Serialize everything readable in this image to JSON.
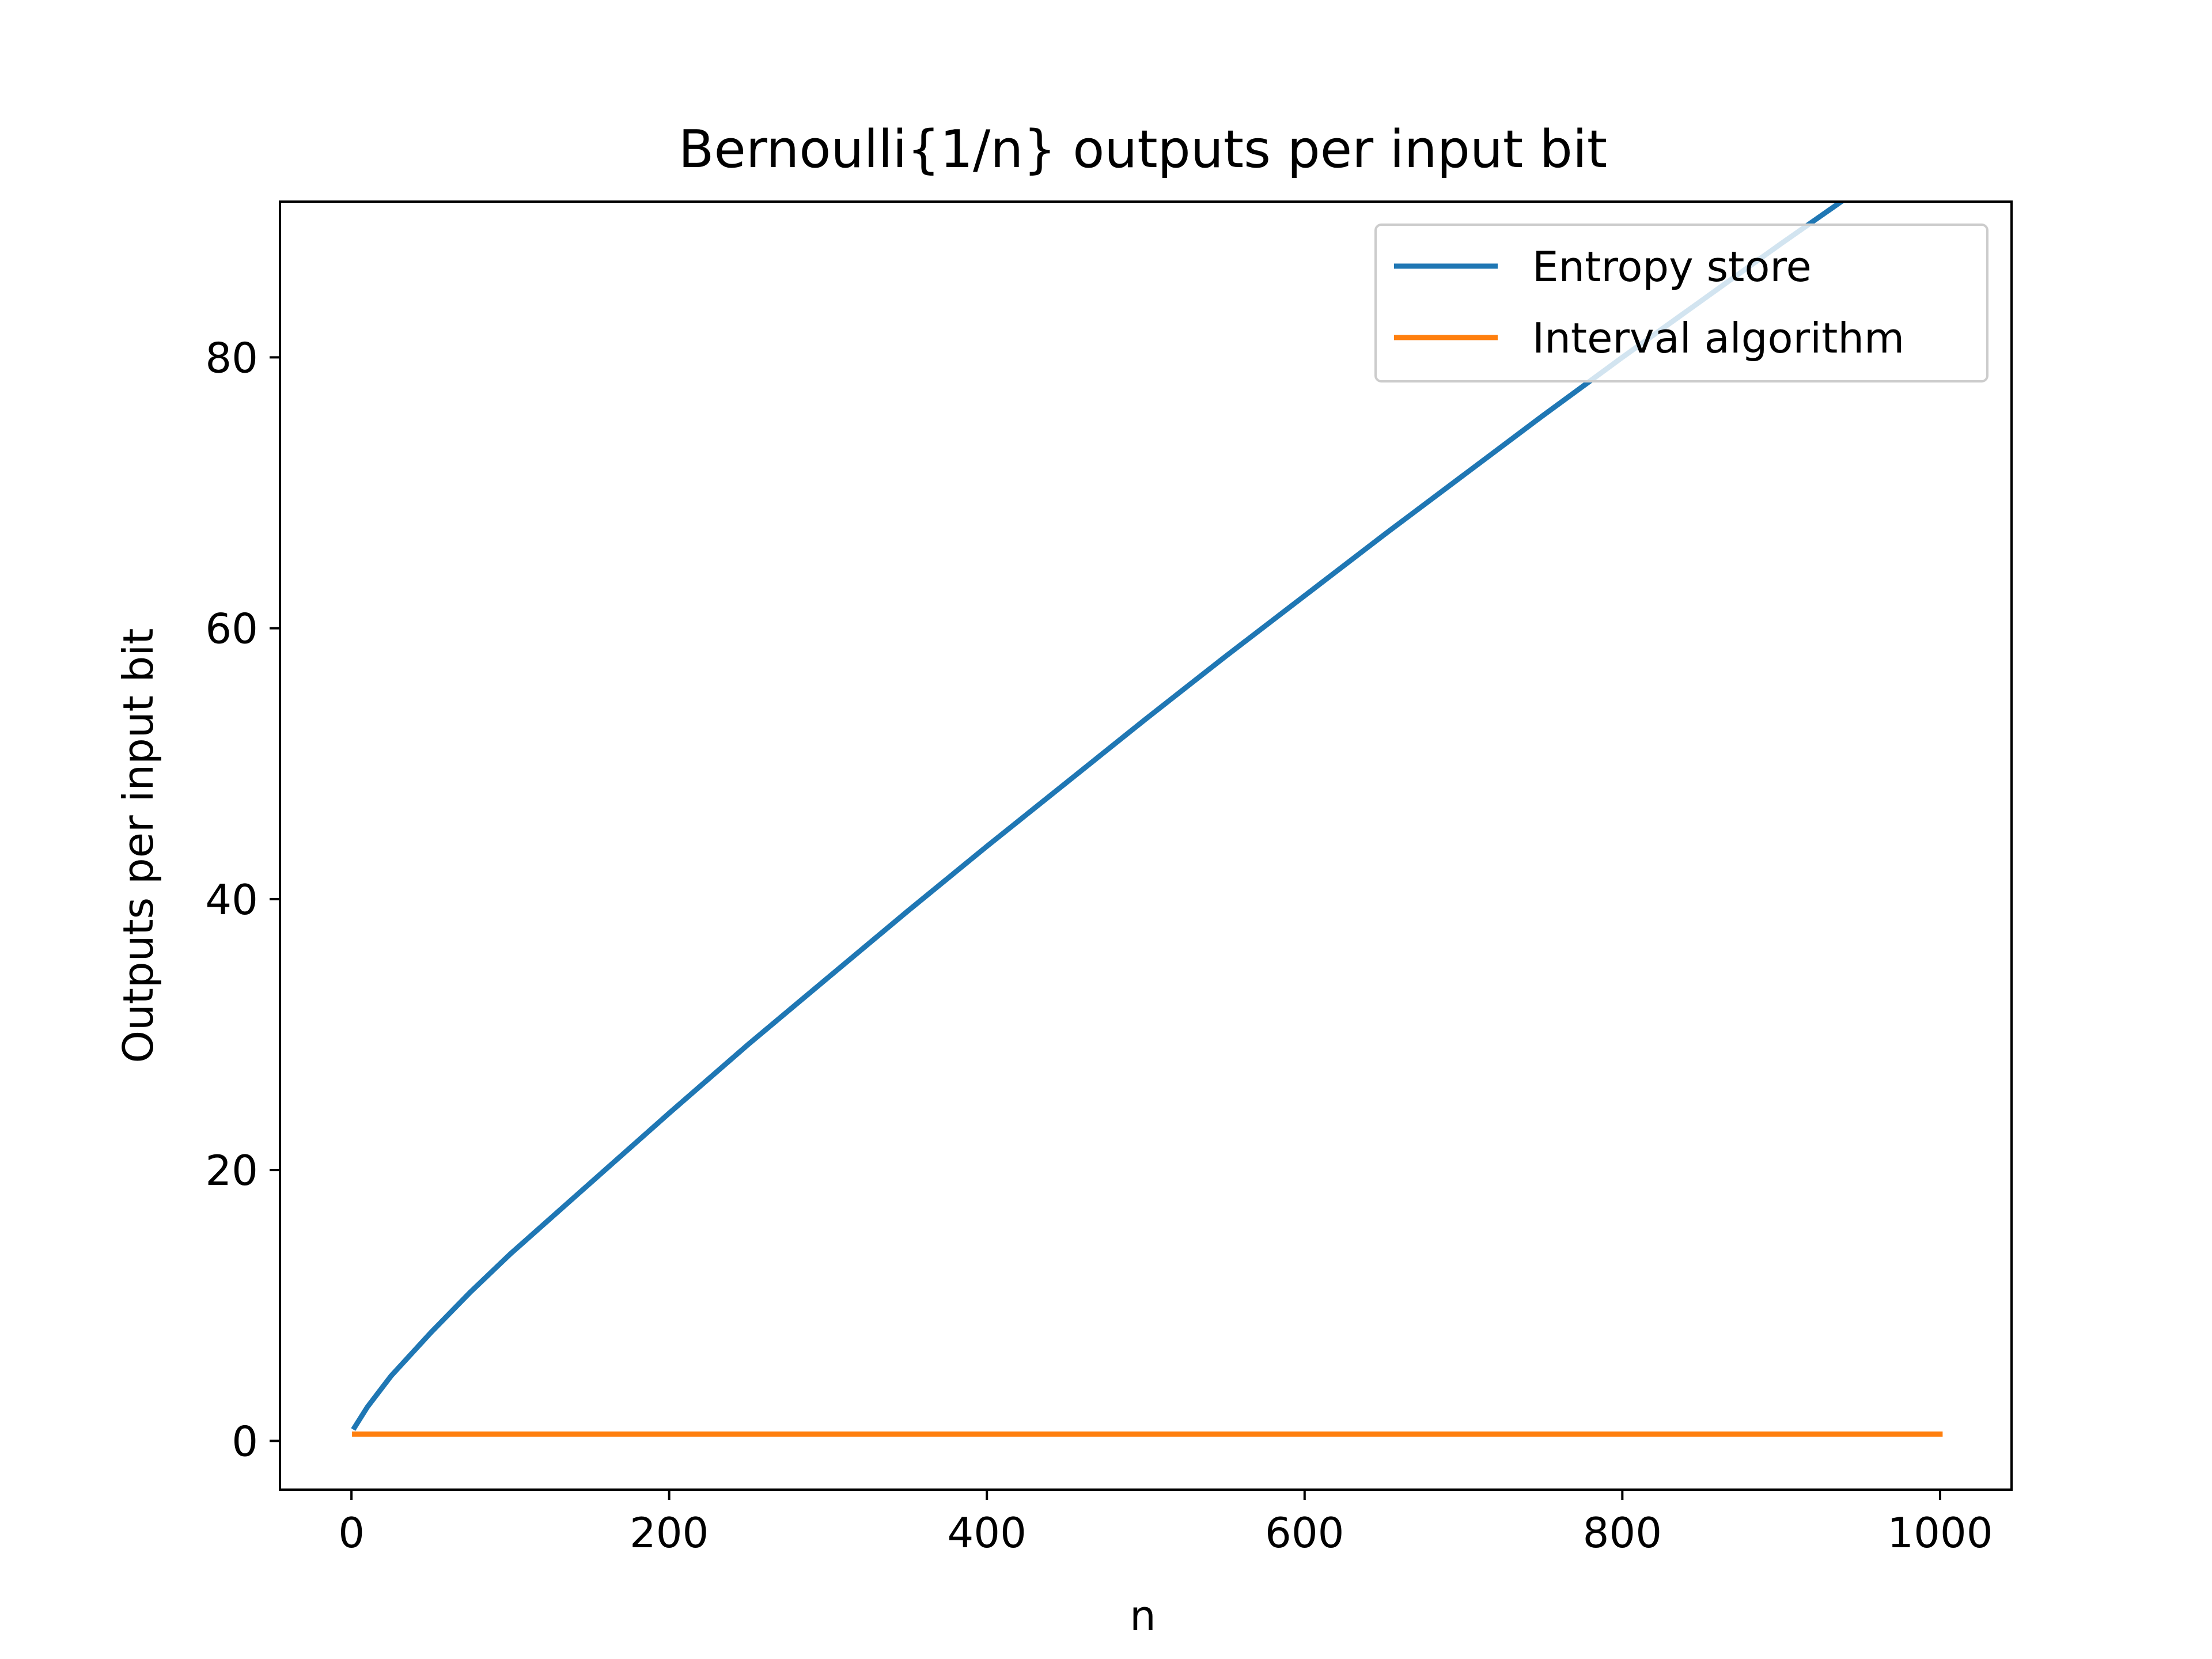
{
  "chart_data": {
    "type": "line",
    "title": "Bernoulli{1/n} outputs per input bit",
    "xlabel": "n",
    "ylabel": "Outputs per input bit",
    "xlim": [
      -45,
      1045
    ],
    "ylim": [
      -3.6,
      91.5
    ],
    "xticks": [
      0,
      200,
      400,
      600,
      800,
      1000
    ],
    "yticks": [
      0,
      20,
      40,
      60,
      80
    ],
    "xtick_labels": [
      "0",
      "200",
      "400",
      "600",
      "800",
      "1000"
    ],
    "ytick_labels": [
      "0",
      "20",
      "40",
      "60",
      "80"
    ],
    "grid": false,
    "legend_position": "top-right",
    "series": [
      {
        "name": "Entropy store",
        "color": "#1f77b4",
        "x": [
          2,
          10,
          25,
          50,
          75,
          100,
          150,
          200,
          250,
          300,
          350,
          400,
          450,
          500,
          550,
          600,
          650,
          700,
          750,
          800,
          850,
          900,
          950,
          1000
        ],
        "y": [
          1.0,
          2.5,
          4.8,
          8.0,
          11.0,
          13.8,
          19.0,
          24.2,
          29.3,
          34.2,
          39.1,
          43.9,
          48.6,
          53.3,
          57.9,
          62.4,
          66.9,
          71.3,
          75.7,
          80.0,
          84.2,
          88.4,
          92.5,
          96.6
        ]
      },
      {
        "name": "Interval algorithm",
        "color": "#ff7f0e",
        "x": [
          2,
          1000
        ],
        "y": [
          0.5,
          0.5
        ]
      }
    ]
  }
}
